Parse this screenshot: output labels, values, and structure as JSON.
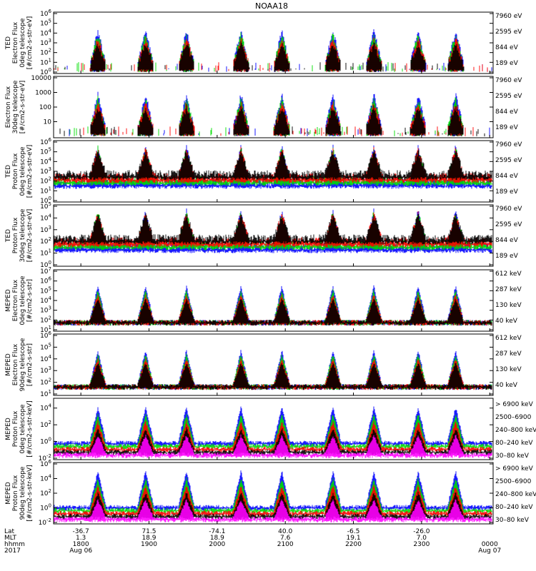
{
  "chart_data": {
    "title": "NOAA18",
    "type": "line",
    "panels": [
      {
        "ylabel": [
          "TED",
          "Electron Flux",
          "0deg telescope",
          "[#/cm2-s-str-eV]"
        ],
        "yticks": [
          "10^0",
          "10^1",
          "10^2",
          "10^3",
          "10^4",
          "10^5",
          "10^6"
        ],
        "ylim": [
          1,
          1000000
        ],
        "yscale": "log",
        "legend": [
          {
            "label": "7960 eV",
            "color": "#000000"
          },
          {
            "label": "2595 eV",
            "color": "#ff0000"
          },
          {
            "label": "844 eV",
            "color": "#00dd00"
          },
          {
            "label": "189 eV",
            "color": "#0000ff"
          }
        ]
      },
      {
        "ylabel": [
          "Electron Flux",
          "30deg telescope",
          "[#/cm2-s-str-eV]"
        ],
        "yticks": [
          "10",
          "100",
          "1000",
          "10000"
        ],
        "ylim": [
          1,
          10000
        ],
        "yscale": "log",
        "legend": [
          {
            "label": "7960 eV",
            "color": "#000000"
          },
          {
            "label": "2595 eV",
            "color": "#ff0000"
          },
          {
            "label": "844 eV",
            "color": "#00dd00"
          },
          {
            "label": "189 eV",
            "color": "#0000ff"
          }
        ]
      },
      {
        "ylabel": [
          "TED",
          "Proton Flux",
          "0deg telescope",
          "[#/cm2-s-str-eV]"
        ],
        "yticks": [
          "10^0",
          "10^1",
          "10^2",
          "10^3",
          "10^4",
          "10^5",
          "10^6"
        ],
        "ylim": [
          1,
          1000000
        ],
        "yscale": "log",
        "legend": [
          {
            "label": "7960 eV",
            "color": "#000000"
          },
          {
            "label": "2595 eV",
            "color": "#ff0000"
          },
          {
            "label": "844 eV",
            "color": "#00dd00"
          },
          {
            "label": "189 eV",
            "color": "#0000ff"
          }
        ]
      },
      {
        "ylabel": [
          "TED",
          "Proton Flux",
          "30deg telescope",
          "[#/cm2-s-str-eV]"
        ],
        "yticks": [
          "10^0",
          "10^1",
          "10^2",
          "10^3",
          "10^4",
          "10^5"
        ],
        "ylim": [
          1,
          100000
        ],
        "yscale": "log",
        "legend": [
          {
            "label": "7960 eV",
            "color": "#000000"
          },
          {
            "label": "2595 eV",
            "color": "#ff0000"
          },
          {
            "label": "844 eV",
            "color": "#00dd00"
          },
          {
            "label": "189 eV",
            "color": "#0000ff"
          }
        ]
      },
      {
        "ylabel": [
          "MEPED",
          "Electron Flux",
          "0deg telescope",
          "[#/cm2-s-str]"
        ],
        "yticks": [
          "10^1",
          "10^2",
          "10^3",
          "10^4",
          "10^5",
          "10^6",
          "10^7"
        ],
        "ylim": [
          10,
          10000000
        ],
        "yscale": "log",
        "legend": [
          {
            "label": "612 keV",
            "color": "#000000"
          },
          {
            "label": "287 keV",
            "color": "#ff0000"
          },
          {
            "label": "130 keV",
            "color": "#00dd00"
          },
          {
            "label": "40 keV",
            "color": "#0000ff"
          }
        ]
      },
      {
        "ylabel": [
          "MEPED",
          "Electron Flux",
          "90deg telescope",
          "[#/cm2-s-str]"
        ],
        "yticks": [
          "10^1",
          "10^2",
          "10^3",
          "10^4",
          "10^5",
          "10^6"
        ],
        "ylim": [
          10,
          1000000
        ],
        "yscale": "log",
        "legend": [
          {
            "label": "612 keV",
            "color": "#000000"
          },
          {
            "label": "287 keV",
            "color": "#ff0000"
          },
          {
            "label": "130 keV",
            "color": "#00dd00"
          },
          {
            "label": "40 keV",
            "color": "#0000ff"
          }
        ]
      },
      {
        "ylabel": [
          "MEPED",
          "Proton Flux",
          "0deg telescope",
          "[#/cm2-s-str-keV]"
        ],
        "yticks": [
          "10^-2",
          "10^0",
          "10^2",
          "10^4"
        ],
        "ylim": [
          0.01,
          100000
        ],
        "yscale": "log",
        "legend": [
          {
            "label": "> 6900 keV",
            "color": "#ff00ff"
          },
          {
            "label": "2500–6900",
            "color": "#000000"
          },
          {
            "label": "240–800 keV",
            "color": "#ff0000"
          },
          {
            "label": "80–240 keV",
            "color": "#00dd00"
          },
          {
            "label": "30–80 keV",
            "color": "#0000ff"
          }
        ]
      },
      {
        "ylabel": [
          "MEPED",
          "Proton Flux",
          "90deg telescope",
          "[#/cm2-s-str-keV]"
        ],
        "yticks": [
          "10^-2",
          "10^0",
          "10^2",
          "10^4",
          "10^6"
        ],
        "ylim": [
          0.01,
          1000000
        ],
        "yscale": "log",
        "legend": [
          {
            "label": "> 6900 keV",
            "color": "#ff00ff"
          },
          {
            "label": "2500–6900",
            "color": "#000000"
          },
          {
            "label": "240–800 keV",
            "color": "#ff0000"
          },
          {
            "label": "80–240 keV",
            "color": "#00dd00"
          },
          {
            "label": "30–80 keV",
            "color": "#0000ff"
          }
        ]
      }
    ],
    "x_axis": {
      "row_labels": [
        "Lat",
        "MLT",
        "hhmm",
        "2017"
      ],
      "ticks": [
        {
          "lat": "-36.7",
          "mlt": "1.3",
          "hhmm": "1800",
          "date": "Aug 06"
        },
        {
          "lat": "71.5",
          "mlt": "18.9",
          "hhmm": "1900",
          "date": ""
        },
        {
          "lat": "-74.1",
          "mlt": "18.9",
          "hhmm": "2000",
          "date": ""
        },
        {
          "lat": "40.0",
          "mlt": "7.6",
          "hhmm": "2100",
          "date": ""
        },
        {
          "lat": "-6.5",
          "mlt": "19.1",
          "hhmm": "2200",
          "date": ""
        },
        {
          "lat": "-26.0",
          "mlt": "7.0",
          "hhmm": "2300",
          "date": ""
        },
        {
          "lat": "",
          "mlt": "",
          "hhmm": "0000",
          "date": "Aug 07"
        }
      ]
    },
    "pass_times_hours": [
      18.25,
      18.95,
      19.55,
      20.35,
      20.95,
      21.7,
      22.3,
      22.95,
      23.5
    ]
  }
}
